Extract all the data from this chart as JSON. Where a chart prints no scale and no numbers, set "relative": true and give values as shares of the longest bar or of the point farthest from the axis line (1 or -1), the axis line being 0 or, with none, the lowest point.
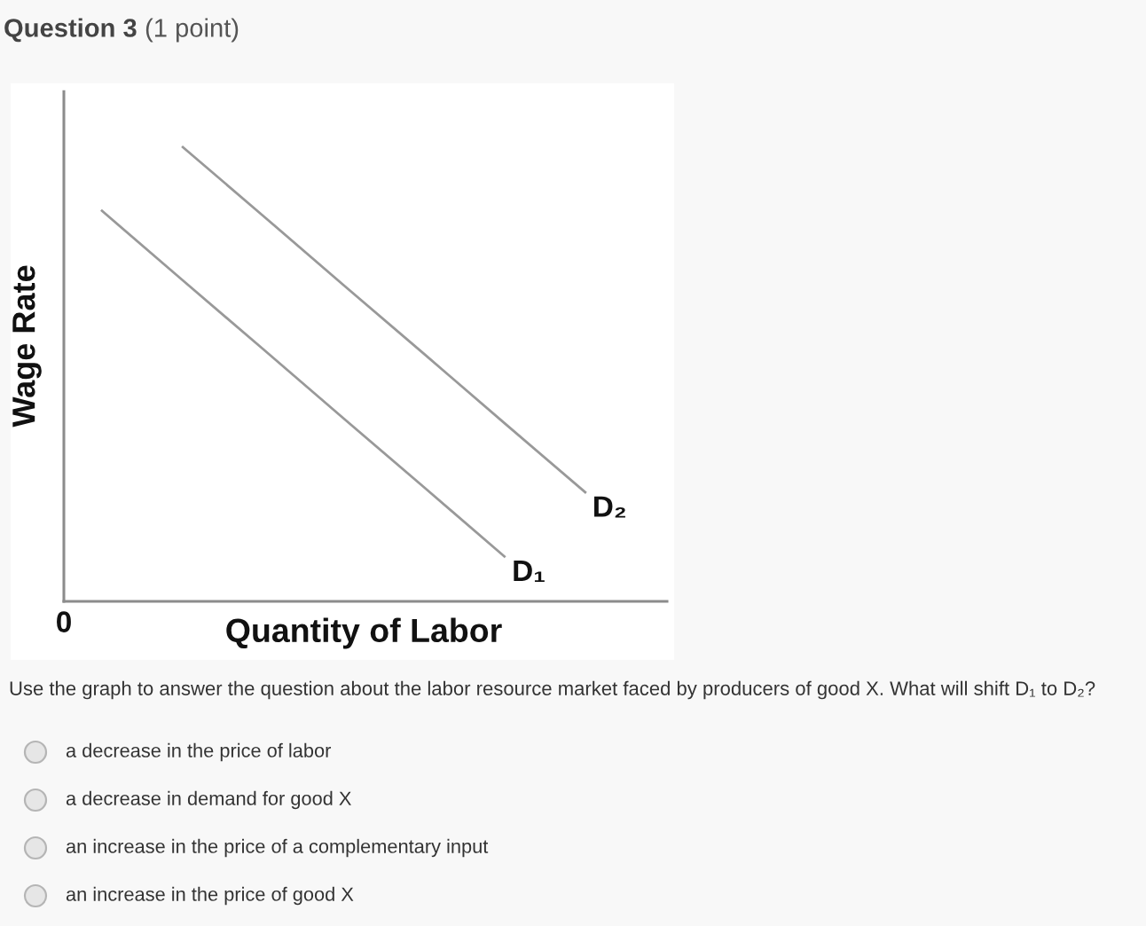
{
  "chart_data": {
    "type": "line",
    "title": "Question 3",
    "subtitle": "(1 point)",
    "xlabel": "Quantity of Labor",
    "ylabel": "Wage Rate",
    "relative": true,
    "categories": [
      null,
      null,
      null,
      null,
      null,
      null,
      null
    ],
    "series": [
      {
        "name": "D₁",
        "color": "#999999",
        "values": [
          0.86,
          0.707,
          0.555,
          0.402,
          0.25,
          0.097,
          null
        ]
      },
      {
        "name": "D₂",
        "color": "#999999",
        "values": [
          null,
          1.0,
          0.848,
          0.695,
          0.543,
          0.39,
          0.238
        ]
      }
    ],
    "annotations": [
      "0",
      "Use the graph to answer the question about the labor resource market faced by producers of good X. What will shift D₁ to D₂?",
      "a decrease in the price of labor",
      "a decrease in demand for good X",
      "an increase in the price of a complementary input",
      "an increase in the price of good X"
    ]
  }
}
